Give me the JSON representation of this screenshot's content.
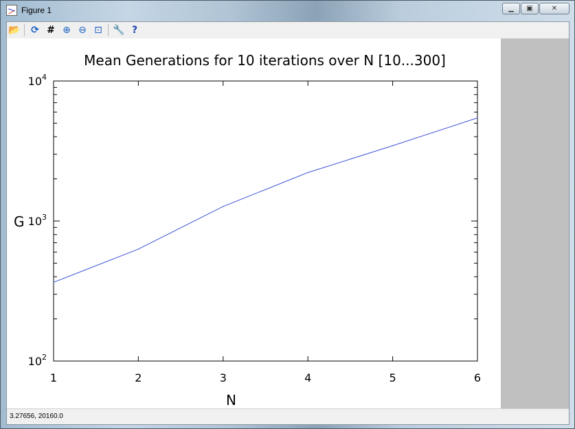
{
  "window": {
    "title": "Figure 1",
    "status": "3.27656,  20160.0"
  },
  "toolbar": {
    "buttons": [
      {
        "name": "open-icon",
        "glyph": "📂"
      },
      {
        "name": "refresh-icon",
        "glyph": "⟳"
      },
      {
        "name": "grid-icon",
        "glyph": "#"
      },
      {
        "name": "zoom-in-icon",
        "glyph": "⊕"
      },
      {
        "name": "zoom-out-icon",
        "glyph": "⊖"
      },
      {
        "name": "zoom-fit-icon",
        "glyph": "⊡"
      },
      {
        "name": "settings-icon",
        "glyph": "🔧"
      },
      {
        "name": "help-icon",
        "glyph": "?"
      }
    ]
  },
  "chart_data": {
    "type": "line",
    "title": "Mean Generations for 10 iterations over N [10...300]",
    "xlabel": "N",
    "ylabel": "G",
    "x": [
      1,
      2,
      3,
      4,
      5,
      6
    ],
    "series": [
      {
        "values": [
          365,
          630,
          1270,
          2220,
          3450,
          5450
        ],
        "color": "#3b4fd8"
      }
    ],
    "xlim": [
      1,
      6
    ],
    "ylim": [
      100,
      10000
    ],
    "yscale": "log",
    "x_ticks": [
      "1",
      "2",
      "3",
      "4",
      "5",
      "6"
    ],
    "y_ticks": [
      {
        "base": "10",
        "exp": "2"
      },
      {
        "base": "10",
        "exp": "3"
      },
      {
        "base": "10",
        "exp": "4"
      }
    ],
    "grid": false,
    "legend": "none"
  }
}
